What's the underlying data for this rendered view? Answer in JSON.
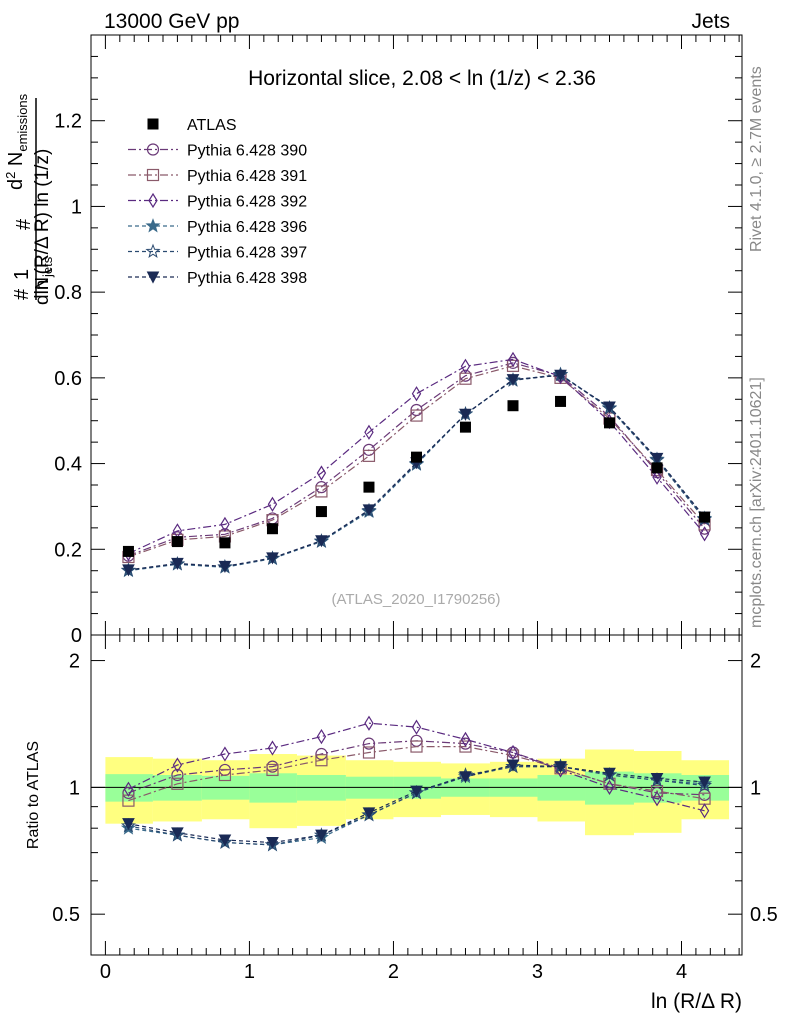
{
  "header": {
    "left": "13000 GeV pp",
    "right": "Jets"
  },
  "side_text": {
    "rivet": "Rivet 4.1.0, ≥ 2.7M events",
    "mcplots": "mcplots.cern.ch [arXiv:2401.10621]"
  },
  "chart_data": {
    "type": "line",
    "title": "Horizontal slice, 2.08 < ln (1/z) < 2.36",
    "watermark": "(ATLAS_2020_I1790256)",
    "xlabel": "ln (R/Δ R)",
    "ylabel_top": "d² N_emissions / dln (R/Δ R) ln (1/z)",
    "ylabel_full": "(1/N_jets) d²N_emissions / dln(R/ΔR) dln(1/z)",
    "ratio_ylabel": "Ratio to ATLAS",
    "xlim": [
      -0.1,
      4.42
    ],
    "ylim_main": [
      0,
      1.4
    ],
    "ylim_ratio": [
      0.4,
      2.3
    ],
    "x_ticks": [
      "0",
      "1",
      "2",
      "3",
      "4"
    ],
    "main_y_ticks": [
      "0",
      "0.2",
      "0.4",
      "0.6",
      "0.8",
      "1",
      "1.2"
    ],
    "ratio_y_ticks": [
      "0.5",
      "1",
      "2"
    ],
    "x": [
      0.16,
      0.5,
      0.83,
      1.16,
      1.5,
      1.83,
      2.16,
      2.5,
      2.83,
      3.16,
      3.5,
      3.83,
      4.16
    ],
    "band_edges": [
      0,
      0.33,
      0.67,
      1.0,
      1.33,
      1.67,
      2.0,
      2.33,
      2.67,
      3.0,
      3.33,
      3.67,
      4.0,
      4.33
    ],
    "data": {
      "name": "ATLAS",
      "values": [
        0.195,
        0.218,
        0.215,
        0.248,
        0.288,
        0.345,
        0.415,
        0.485,
        0.535,
        0.545,
        0.495,
        0.39,
        0.275
      ],
      "stat_band": [
        0.075,
        0.07,
        0.065,
        0.08,
        0.07,
        0.06,
        0.06,
        0.05,
        0.05,
        0.07,
        0.09,
        0.08,
        0.07
      ],
      "total_band": [
        0.18,
        0.17,
        0.16,
        0.2,
        0.19,
        0.16,
        0.15,
        0.14,
        0.15,
        0.17,
        0.23,
        0.22,
        0.16
      ]
    },
    "series": [
      {
        "name": "Pythia 6.428 390",
        "color": "#6b3a78",
        "marker": "circle",
        "dash": "8,3,2,3",
        "values": [
          0.185,
          0.228,
          0.235,
          0.272,
          0.345,
          0.432,
          0.525,
          0.605,
          0.635,
          0.605,
          0.51,
          0.38,
          0.248
        ],
        "ratio": [
          0.97,
          1.07,
          1.1,
          1.12,
          1.2,
          1.27,
          1.29,
          1.27,
          1.21,
          1.11,
          1.02,
          0.97,
          0.96
        ]
      },
      {
        "name": "Pythia 6.428 391",
        "color": "#8a5a6a",
        "marker": "square",
        "dash": "8,3,2,3",
        "values": [
          0.182,
          0.222,
          0.23,
          0.268,
          0.335,
          0.418,
          0.512,
          0.598,
          0.628,
          0.6,
          0.505,
          0.385,
          0.258
        ],
        "ratio": [
          0.93,
          1.02,
          1.07,
          1.1,
          1.16,
          1.21,
          1.25,
          1.25,
          1.19,
          1.11,
          1.02,
          0.98,
          0.94
        ]
      },
      {
        "name": "Pythia 6.428 392",
        "color": "#5a2a80",
        "marker": "diamond",
        "dash": "8,3,2,3",
        "values": [
          0.19,
          0.243,
          0.258,
          0.305,
          0.378,
          0.473,
          0.563,
          0.627,
          0.643,
          0.603,
          0.498,
          0.368,
          0.236
        ],
        "ratio": [
          0.99,
          1.13,
          1.2,
          1.24,
          1.32,
          1.42,
          1.39,
          1.3,
          1.21,
          1.1,
          1.0,
          0.94,
          0.88
        ]
      },
      {
        "name": "Pythia 6.428 396",
        "color": "#3a6a8a",
        "marker": "star",
        "dash": "4,3",
        "values": [
          0.15,
          0.165,
          0.158,
          0.178,
          0.218,
          0.288,
          0.398,
          0.515,
          0.595,
          0.608,
          0.53,
          0.41,
          0.272
        ],
        "ratio": [
          0.8,
          0.77,
          0.74,
          0.73,
          0.76,
          0.86,
          0.97,
          1.06,
          1.12,
          1.12,
          1.07,
          1.04,
          1.02
        ]
      },
      {
        "name": "Pythia 6.428 397",
        "color": "#2a4a70",
        "marker": "star-open",
        "dash": "4,3",
        "values": [
          0.151,
          0.166,
          0.159,
          0.179,
          0.219,
          0.29,
          0.4,
          0.516,
          0.594,
          0.607,
          0.529,
          0.408,
          0.27
        ],
        "ratio": [
          0.81,
          0.77,
          0.74,
          0.73,
          0.77,
          0.86,
          0.97,
          1.07,
          1.12,
          1.12,
          1.07,
          1.04,
          1.01
        ]
      },
      {
        "name": "Pythia 6.428 398",
        "color": "#1a2a55",
        "marker": "triangle-down",
        "dash": "4,3",
        "values": [
          0.152,
          0.167,
          0.16,
          0.18,
          0.22,
          0.292,
          0.402,
          0.515,
          0.596,
          0.606,
          0.532,
          0.412,
          0.275
        ],
        "ratio": [
          0.82,
          0.78,
          0.75,
          0.74,
          0.77,
          0.87,
          0.98,
          1.06,
          1.13,
          1.12,
          1.08,
          1.05,
          1.03
        ]
      }
    ]
  }
}
